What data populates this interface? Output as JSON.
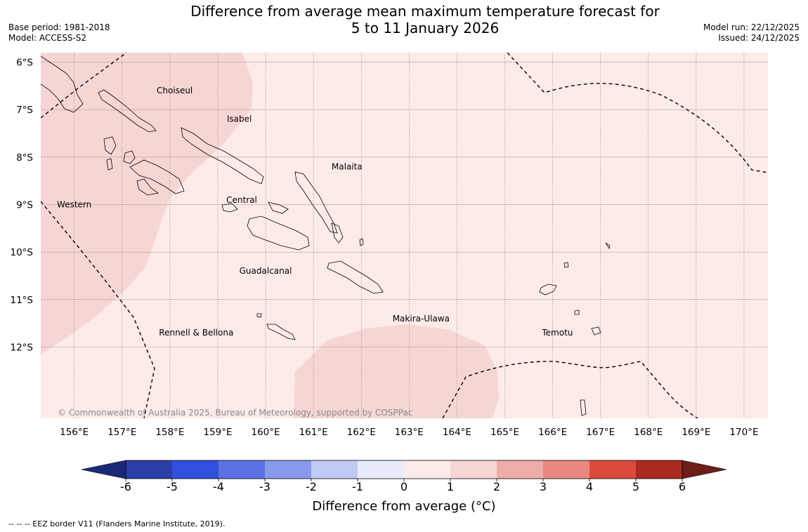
{
  "title_line1": "Difference from average mean maximum temperature forecast for",
  "title_line2": "5 to 11 January 2026",
  "base_period": "Base period: 1981-2018",
  "model": "Model: ACCESS-S2",
  "model_run": "Model run: 22/12/2025",
  "issued": "Issued: 24/12/2025",
  "copyright": "© Commonwealth of Australia 2025, Bureau of Meteorology, supported by COSPPac",
  "footer": "--  --  -- EEZ border V11 (Flanders Marine Institute, 2019).",
  "map": {
    "lat_labels": [
      "6°S",
      "7°S",
      "8°S",
      "9°S",
      "10°S",
      "11°S",
      "12°S"
    ],
    "lat_values": [
      -6,
      -7,
      -8,
      -9,
      -10,
      -11,
      -12
    ],
    "lon_labels": [
      "156°E",
      "157°E",
      "158°E",
      "159°E",
      "160°E",
      "161°E",
      "162°E",
      "163°E",
      "164°E",
      "165°E",
      "166°E",
      "167°E",
      "168°E",
      "169°E",
      "170°E"
    ],
    "lon_values": [
      156,
      157,
      158,
      159,
      160,
      161,
      162,
      163,
      164,
      165,
      166,
      167,
      168,
      169,
      170
    ],
    "extent": {
      "lon_min": 155.3,
      "lon_max": 170.5,
      "lat_min": -13.5,
      "lat_max": -5.8
    },
    "regions": [
      {
        "name": "Choiseul",
        "lon": 158.1,
        "lat": -6.6
      },
      {
        "name": "Isabel",
        "lon": 159.45,
        "lat": -7.2
      },
      {
        "name": "Malaita",
        "lon": 161.7,
        "lat": -8.2
      },
      {
        "name": "Central",
        "lon": 159.5,
        "lat": -8.9
      },
      {
        "name": "Western",
        "lon": 156.0,
        "lat": -9.0
      },
      {
        "name": "Guadalcanal",
        "lon": 160.0,
        "lat": -10.4
      },
      {
        "name": "Makira-Ulawa",
        "lon": 163.25,
        "lat": -11.4
      },
      {
        "name": "Rennell & Bellona",
        "lon": 158.55,
        "lat": -11.7
      },
      {
        "name": "Temotu",
        "lon": 166.1,
        "lat": -11.7
      }
    ],
    "colors": {
      "anomaly_0_1": "#fcebe9",
      "anomaly_1_2": "#f6d6d4"
    }
  },
  "colorbar": {
    "title": "Difference from average (°C)",
    "ticks": [
      "-6",
      "-5",
      "-4",
      "-3",
      "-2",
      "-1",
      "0",
      "1",
      "2",
      "3",
      "4",
      "5",
      "6"
    ],
    "colors": [
      "#2a3fa8",
      "#3050de",
      "#5a72e4",
      "#8899ec",
      "#c1c9f5",
      "#e8ebfc",
      "#fcebe9",
      "#f6d6d4",
      "#edaca8",
      "#e8887f",
      "#dc4a3e",
      "#ad2a22"
    ],
    "under_color": "#1b2a78",
    "over_color": "#6e1d18"
  }
}
